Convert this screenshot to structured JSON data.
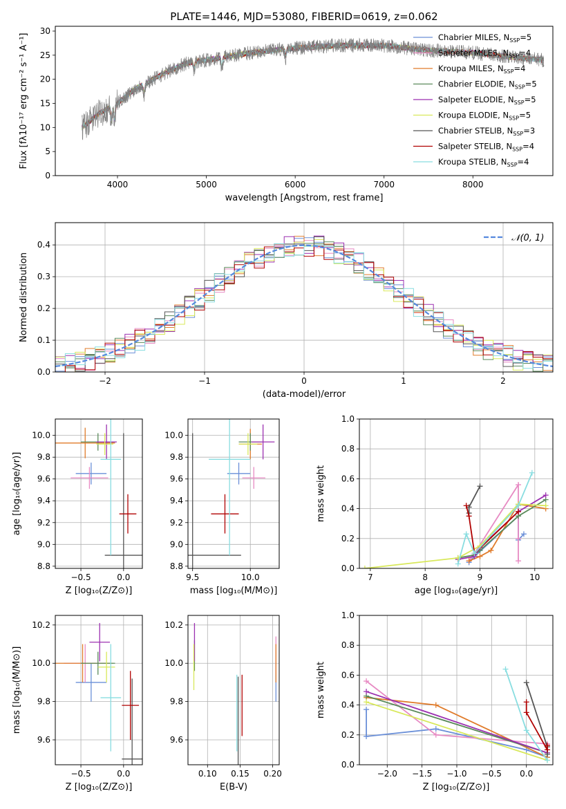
{
  "title": "PLATE=1446, MJD=53080, FIBERID=0619, z=0.062",
  "colors": {
    "chabrier_miles": "#6a8fd8",
    "salpeter_miles": "#e78ac3",
    "kroupa_miles": "#e07b2a",
    "chabrier_elodie": "#5a8a5a",
    "salpeter_elodie": "#9b2fb0",
    "kroupa_elodie": "#d8e85a",
    "chabrier_stelib": "#555555",
    "salpeter_stelib": "#b00000",
    "kroupa_stelib": "#88dde0"
  },
  "legend_spectrum": [
    {
      "label": "Chabrier MILES, N",
      "sub": "SSP",
      "suffix": "=5",
      "color_key": "chabrier_miles"
    },
    {
      "label": "Salpeter MILES, N",
      "sub": "SSP",
      "suffix": "=4",
      "color_key": "salpeter_miles"
    },
    {
      "label": "Kroupa MILES, N",
      "sub": "SSP",
      "suffix": "=4",
      "color_key": "kroupa_miles"
    },
    {
      "label": "Chabrier ELODIE, N",
      "sub": "SSP",
      "suffix": "=5",
      "color_key": "chabrier_elodie"
    },
    {
      "label": "Salpeter ELODIE, N",
      "sub": "SSP",
      "suffix": "=5",
      "color_key": "salpeter_elodie"
    },
    {
      "label": "Kroupa ELODIE, N",
      "sub": "SSP",
      "suffix": "=5",
      "color_key": "kroupa_elodie"
    },
    {
      "label": "Chabrier STELIB, N",
      "sub": "SSP",
      "suffix": "=3",
      "color_key": "chabrier_stelib"
    },
    {
      "label": "Salpeter STELIB, N",
      "sub": "SSP",
      "suffix": "=4",
      "color_key": "salpeter_stelib"
    },
    {
      "label": "Kroupa STELIB, N",
      "sub": "SSP",
      "suffix": "=4",
      "color_key": "kroupa_stelib"
    }
  ],
  "chart_data": [
    {
      "id": "spectrum",
      "type": "line",
      "xlabel": "wavelength [Angstrom, rest frame]",
      "ylabel": "Flux [fλ10⁻¹⁷ erg cm⁻² s⁻¹ A⁻¹]",
      "xlim": [
        3300,
        8900
      ],
      "ylim": [
        0,
        31
      ],
      "xticks": [
        4000,
        5000,
        6000,
        7000,
        8000
      ],
      "yticks": [
        0,
        5,
        10,
        15,
        20,
        25,
        30
      ],
      "data_color": "#808080",
      "continuum": [
        [
          3600,
          10
        ],
        [
          3800,
          13
        ],
        [
          4000,
          15
        ],
        [
          4200,
          18
        ],
        [
          4500,
          21
        ],
        [
          4800,
          23.5
        ],
        [
          5000,
          24
        ],
        [
          5500,
          25.5
        ],
        [
          6000,
          26.5
        ],
        [
          6500,
          27
        ],
        [
          7000,
          27
        ],
        [
          7500,
          26
        ],
        [
          8000,
          25.5
        ],
        [
          8500,
          24.5
        ],
        [
          8800,
          24
        ]
      ],
      "absorption": [
        [
          3933,
          3
        ],
        [
          3968,
          3
        ],
        [
          4300,
          2
        ],
        [
          4861,
          1.5
        ],
        [
          5175,
          2
        ],
        [
          5893,
          1.5
        ]
      ],
      "grid": false
    },
    {
      "id": "residuals",
      "type": "step",
      "xlabel": "(data-model)/error",
      "ylabel": "Normed distribution",
      "xlim": [
        -2.5,
        2.5
      ],
      "ylim": [
        0,
        0.47
      ],
      "xticks": [
        -2,
        -1,
        0,
        1,
        2
      ],
      "yticks": [
        0.0,
        0.1,
        0.2,
        0.3,
        0.4
      ],
      "legend": "𝒩(0, 1)",
      "gaussian": {
        "mu": 0,
        "sigma": 1,
        "color": "#5588dd"
      },
      "grid": true
    },
    {
      "id": "age_vs_z",
      "type": "errorbar",
      "xlabel": "Z [log₁₀(Z/Z⊙)]",
      "ylabel": "age  [log₁₀(age/yr)]",
      "xlim": [
        -0.8,
        0.22
      ],
      "ylim": [
        8.78,
        10.15
      ],
      "xticks": [
        -0.5,
        0.0
      ],
      "yticks": [
        8.8,
        9.0,
        9.2,
        9.4,
        9.6,
        9.8,
        10.0
      ],
      "points": [
        {
          "c": "chabrier_miles",
          "x": -0.38,
          "xe": 0.18,
          "y": 9.65,
          "ye": 0.1
        },
        {
          "c": "salpeter_miles",
          "x": -0.4,
          "xe": 0.22,
          "y": 9.61,
          "ye": 0.1
        },
        {
          "c": "kroupa_miles",
          "x": -0.45,
          "xe": 0.35,
          "y": 9.93,
          "ye": 0.14
        },
        {
          "c": "chabrier_elodie",
          "x": -0.3,
          "xe": 0.2,
          "y": 9.94,
          "ye": 0.08
        },
        {
          "c": "salpeter_elodie",
          "x": -0.2,
          "xe": 0.12,
          "y": 9.94,
          "ye": 0.16
        },
        {
          "c": "kroupa_elodie",
          "x": -0.22,
          "xe": 0.1,
          "y": 9.92,
          "ye": 0.1
        },
        {
          "c": "chabrier_stelib",
          "x": 0.0,
          "xe": 0.22,
          "y": 8.9,
          "ye": 1.12
        },
        {
          "c": "salpeter_stelib",
          "x": 0.05,
          "xe": 0.1,
          "y": 9.28,
          "ye": 0.18
        },
        {
          "c": "kroupa_stelib",
          "x": -0.15,
          "xe": 0.12,
          "y": 9.78,
          "ye": 0.88
        }
      ],
      "grid": true
    },
    {
      "id": "age_vs_mass",
      "type": "errorbar",
      "xlabel": "mass [log₁₀(M/M⊙)]",
      "ylabel": "",
      "xlim": [
        9.46,
        10.25
      ],
      "ylim": [
        8.78,
        10.15
      ],
      "xticks": [
        9.5,
        10.0
      ],
      "yticks": [
        8.8,
        9.0,
        9.2,
        9.4,
        9.6,
        9.8,
        10.0
      ],
      "points": [
        {
          "c": "chabrier_miles",
          "x": 9.9,
          "xe": 0.1,
          "y": 9.65,
          "ye": 0.1
        },
        {
          "c": "salpeter_miles",
          "x": 10.03,
          "xe": 0.1,
          "y": 9.61,
          "ye": 0.1
        },
        {
          "c": "kroupa_miles",
          "x": 10.0,
          "xe": 0.1,
          "y": 9.92,
          "ye": 0.14
        },
        {
          "c": "chabrier_elodie",
          "x": 10.0,
          "xe": 0.1,
          "y": 9.94,
          "ye": 0.08
        },
        {
          "c": "salpeter_elodie",
          "x": 10.11,
          "xe": 0.1,
          "y": 9.94,
          "ye": 0.16
        },
        {
          "c": "kroupa_elodie",
          "x": 9.98,
          "xe": 0.08,
          "y": 9.92,
          "ye": 0.1
        },
        {
          "c": "chabrier_stelib",
          "x": 9.5,
          "xe": 0.42,
          "y": 8.9,
          "ye": 1.12
        },
        {
          "c": "salpeter_stelib",
          "x": 9.78,
          "xe": 0.12,
          "y": 9.28,
          "ye": 0.18
        },
        {
          "c": "kroupa_stelib",
          "x": 9.82,
          "xe": 0.18,
          "y": 9.78,
          "ye": 0.88
        }
      ],
      "grid": true
    },
    {
      "id": "weight_vs_age",
      "type": "line",
      "xlabel": "age  [log₁₀(age/yr)]",
      "ylabel": "mass weight",
      "xlim": [
        6.8,
        10.33
      ],
      "ylim": [
        0,
        1.0
      ],
      "xticks": [
        7,
        8,
        9,
        10
      ],
      "yticks": [
        0.0,
        0.2,
        0.4,
        0.6,
        0.8,
        1.0
      ],
      "series": [
        {
          "c": "chabrier_miles",
          "x": [
            8.8,
            8.9,
            9.7,
            9.7,
            9.8
          ],
          "y": [
            0.04,
            0.08,
            0.35,
            0.19,
            0.23
          ]
        },
        {
          "c": "salpeter_miles",
          "x": [
            8.8,
            8.9,
            9.7,
            9.7,
            9.7
          ],
          "y": [
            0.05,
            0.1,
            0.56,
            0.2,
            0.05
          ]
        },
        {
          "c": "kroupa_miles",
          "x": [
            8.8,
            9.0,
            9.2,
            9.7,
            10.2
          ],
          "y": [
            0.05,
            0.08,
            0.12,
            0.43,
            0.4
          ]
        },
        {
          "c": "chabrier_elodie",
          "x": [
            8.6,
            8.9,
            9.0,
            9.7,
            10.2
          ],
          "y": [
            0.07,
            0.09,
            0.12,
            0.35,
            0.46
          ]
        },
        {
          "c": "salpeter_elodie",
          "x": [
            8.6,
            8.9,
            9.0,
            9.7,
            10.2
          ],
          "y": [
            0.06,
            0.08,
            0.14,
            0.38,
            0.49
          ]
        },
        {
          "c": "kroupa_elodie",
          "x": [
            6.9,
            8.6,
            9.0,
            9.7,
            10.2
          ],
          "y": [
            0.0,
            0.07,
            0.15,
            0.43,
            0.42
          ]
        },
        {
          "c": "chabrier_stelib",
          "x": [
            8.8,
            8.8,
            9.0
          ],
          "y": [
            0.37,
            0.41,
            0.55
          ]
        },
        {
          "c": "salpeter_stelib",
          "x": [
            8.75,
            8.8,
            8.9,
            9.7
          ],
          "y": [
            0.42,
            0.35,
            0.1,
            0.38
          ]
        },
        {
          "c": "kroupa_stelib",
          "x": [
            8.6,
            8.75,
            8.9,
            9.7,
            9.95
          ],
          "y": [
            0.03,
            0.23,
            0.1,
            0.42,
            0.64
          ]
        }
      ],
      "grid": true
    },
    {
      "id": "mass_vs_z",
      "type": "errorbar",
      "xlabel": "Z [log₁₀(Z/Z⊙)]",
      "ylabel": "mass [log₁₀(M/M⊙)]",
      "xlim": [
        -0.8,
        0.22
      ],
      "ylim": [
        9.47,
        10.25
      ],
      "xticks": [
        -0.5,
        0.0
      ],
      "yticks": [
        9.6,
        9.8,
        10.0,
        10.2
      ],
      "points": [
        {
          "c": "chabrier_miles",
          "x": -0.38,
          "xe": 0.18,
          "y": 9.9,
          "ye": 0.1
        },
        {
          "c": "salpeter_miles",
          "x": -0.45,
          "xe": 0.25,
          "y": 10.0,
          "ye": 0.1
        },
        {
          "c": "kroupa_miles",
          "x": -0.48,
          "xe": 0.35,
          "y": 10.0,
          "ye": 0.1
        },
        {
          "c": "chabrier_elodie",
          "x": -0.3,
          "xe": 0.2,
          "y": 10.0,
          "ye": 0.06
        },
        {
          "c": "salpeter_elodie",
          "x": -0.28,
          "xe": 0.12,
          "y": 10.11,
          "ye": 0.1
        },
        {
          "c": "kroupa_elodie",
          "x": -0.2,
          "xe": 0.1,
          "y": 9.98,
          "ye": 0.08
        },
        {
          "c": "chabrier_stelib",
          "x": 0.1,
          "xe": 0.12,
          "y": 9.5,
          "ye": 0.42
        },
        {
          "c": "salpeter_stelib",
          "x": 0.08,
          "xe": 0.1,
          "y": 9.78,
          "ye": 0.18
        },
        {
          "c": "kroupa_stelib",
          "x": -0.15,
          "xe": 0.12,
          "y": 9.82,
          "ye": 0.28
        }
      ],
      "grid": true
    },
    {
      "id": "mass_vs_ebv",
      "type": "errorbar",
      "xlabel": "E(B-V)",
      "ylabel": "",
      "xlim": [
        0.07,
        0.21
      ],
      "ylim": [
        9.47,
        10.25
      ],
      "xticks": [
        0.1,
        0.15,
        0.2
      ],
      "yticks": [
        9.6,
        9.8,
        10.0,
        10.2
      ],
      "points": [
        {
          "c": "chabrier_miles",
          "x": 0.205,
          "xe": 0.0,
          "y": 9.9,
          "ye": 0.1
        },
        {
          "c": "salpeter_miles",
          "x": 0.205,
          "xe": 0.0,
          "y": 10.04,
          "ye": 0.1
        },
        {
          "c": "kroupa_miles",
          "x": 0.205,
          "xe": 0.0,
          "y": 10.0,
          "ye": 0.1
        },
        {
          "c": "chabrier_elodie",
          "x": 0.08,
          "xe": 0.0,
          "y": 10.04,
          "ye": 0.08
        },
        {
          "c": "salpeter_elodie",
          "x": 0.08,
          "xe": 0.0,
          "y": 10.11,
          "ye": 0.1
        },
        {
          "c": "kroupa_elodie",
          "x": 0.079,
          "xe": 0.0,
          "y": 9.98,
          "ye": 0.12
        },
        {
          "c": "chabrier_stelib",
          "x": 0.147,
          "xe": 0.0,
          "y": 9.7,
          "ye": 0.23
        },
        {
          "c": "salpeter_stelib",
          "x": 0.153,
          "xe": 0.0,
          "y": 9.78,
          "ye": 0.16
        },
        {
          "c": "kroupa_stelib",
          "x": 0.145,
          "xe": 0.0,
          "y": 9.74,
          "ye": 0.2
        }
      ],
      "grid": true
    },
    {
      "id": "weight_vs_z",
      "type": "line",
      "xlabel": "Z [log₁₀(Z/Z⊙)]",
      "ylabel": "mass weight",
      "xlim": [
        -2.4,
        0.38
      ],
      "ylim": [
        0,
        1.0
      ],
      "xticks": [
        -2.0,
        -1.5,
        -1.0,
        -0.5,
        0.0
      ],
      "yticks": [
        0.0,
        0.2,
        0.4,
        0.6,
        0.8,
        1.0
      ],
      "series": [
        {
          "c": "chabrier_miles",
          "x": [
            -2.3,
            -2.3,
            -1.3,
            0.0,
            0.3
          ],
          "y": [
            0.37,
            0.19,
            0.24,
            0.1,
            0.05
          ]
        },
        {
          "c": "salpeter_miles",
          "x": [
            -2.3,
            -1.3,
            0.3
          ],
          "y": [
            0.56,
            0.2,
            0.14
          ]
        },
        {
          "c": "kroupa_miles",
          "x": [
            -2.3,
            -1.3,
            0.3
          ],
          "y": [
            0.45,
            0.4,
            0.05
          ]
        },
        {
          "c": "chabrier_elodie",
          "x": [
            -2.3,
            0.3
          ],
          "y": [
            0.46,
            0.08
          ]
        },
        {
          "c": "salpeter_elodie",
          "x": [
            -2.3,
            0.3
          ],
          "y": [
            0.49,
            0.08
          ]
        },
        {
          "c": "kroupa_elodie",
          "x": [
            -2.3,
            0.3
          ],
          "y": [
            0.42,
            0.03
          ]
        },
        {
          "c": "chabrier_stelib",
          "x": [
            0.0,
            0.3,
            0.3
          ],
          "y": [
            0.55,
            0.12,
            0.07
          ]
        },
        {
          "c": "salpeter_stelib",
          "x": [
            0.0,
            0.0,
            0.3,
            0.3
          ],
          "y": [
            0.42,
            0.35,
            0.1,
            0.13
          ]
        },
        {
          "c": "kroupa_stelib",
          "x": [
            -0.3,
            0.0,
            0.3
          ],
          "y": [
            0.64,
            0.23,
            0.03
          ]
        }
      ],
      "grid": true
    }
  ]
}
